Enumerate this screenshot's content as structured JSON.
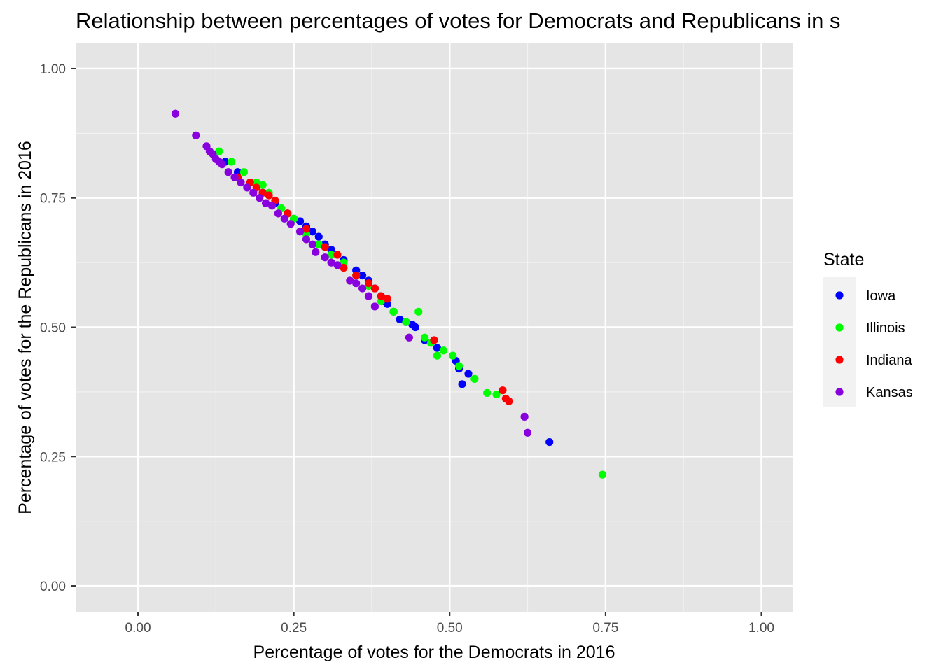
{
  "chart_data": {
    "type": "scatter",
    "title": "Relationship between percentages of votes for Democrats and Republicans in s",
    "xlabel": "Percentage of votes for the Democrats in 2016",
    "ylabel": "Percentage of votes for the Republicans in 2016",
    "xlim": [
      -0.1,
      1.05
    ],
    "ylim": [
      -0.05,
      1.05
    ],
    "xticks": [
      0.0,
      0.25,
      0.5,
      0.75,
      1.0
    ],
    "xtick_labels": [
      "0.00",
      "0.25",
      "0.50",
      "0.75",
      "1.00"
    ],
    "yticks": [
      0.0,
      0.25,
      0.5,
      0.75,
      1.0
    ],
    "ytick_labels": [
      "0.00",
      "0.25",
      "0.50",
      "0.75",
      "1.00"
    ],
    "grid": true,
    "legend": {
      "title": "State",
      "position": "right"
    },
    "series": [
      {
        "name": "Iowa",
        "color": "#0000ff",
        "points": [
          [
            0.14,
            0.82
          ],
          [
            0.16,
            0.8
          ],
          [
            0.18,
            0.78
          ],
          [
            0.2,
            0.76
          ],
          [
            0.22,
            0.74
          ],
          [
            0.24,
            0.72
          ],
          [
            0.25,
            0.71
          ],
          [
            0.26,
            0.705
          ],
          [
            0.27,
            0.695
          ],
          [
            0.28,
            0.685
          ],
          [
            0.29,
            0.675
          ],
          [
            0.3,
            0.66
          ],
          [
            0.31,
            0.65
          ],
          [
            0.33,
            0.63
          ],
          [
            0.35,
            0.61
          ],
          [
            0.36,
            0.6
          ],
          [
            0.37,
            0.59
          ],
          [
            0.38,
            0.575
          ],
          [
            0.39,
            0.56
          ],
          [
            0.395,
            0.55
          ],
          [
            0.4,
            0.545
          ],
          [
            0.41,
            0.53
          ],
          [
            0.42,
            0.515
          ],
          [
            0.43,
            0.51
          ],
          [
            0.44,
            0.505
          ],
          [
            0.445,
            0.5
          ],
          [
            0.46,
            0.475
          ],
          [
            0.47,
            0.47
          ],
          [
            0.48,
            0.46
          ],
          [
            0.51,
            0.435
          ],
          [
            0.515,
            0.42
          ],
          [
            0.52,
            0.39
          ],
          [
            0.53,
            0.41
          ],
          [
            0.66,
            0.278
          ]
        ]
      },
      {
        "name": "Illinois",
        "color": "#00ff00",
        "points": [
          [
            0.13,
            0.84
          ],
          [
            0.15,
            0.82
          ],
          [
            0.17,
            0.8
          ],
          [
            0.19,
            0.78
          ],
          [
            0.2,
            0.775
          ],
          [
            0.21,
            0.76
          ],
          [
            0.23,
            0.73
          ],
          [
            0.25,
            0.71
          ],
          [
            0.27,
            0.68
          ],
          [
            0.29,
            0.66
          ],
          [
            0.31,
            0.64
          ],
          [
            0.33,
            0.625
          ],
          [
            0.35,
            0.6
          ],
          [
            0.37,
            0.58
          ],
          [
            0.39,
            0.55
          ],
          [
            0.41,
            0.53
          ],
          [
            0.43,
            0.51
          ],
          [
            0.45,
            0.53
          ],
          [
            0.46,
            0.48
          ],
          [
            0.47,
            0.47
          ],
          [
            0.48,
            0.445
          ],
          [
            0.49,
            0.455
          ],
          [
            0.505,
            0.445
          ],
          [
            0.515,
            0.425
          ],
          [
            0.54,
            0.4
          ],
          [
            0.56,
            0.373
          ],
          [
            0.575,
            0.37
          ],
          [
            0.745,
            0.215
          ]
        ]
      },
      {
        "name": "Indiana",
        "color": "#ff0000",
        "points": [
          [
            0.16,
            0.79
          ],
          [
            0.18,
            0.78
          ],
          [
            0.19,
            0.77
          ],
          [
            0.2,
            0.76
          ],
          [
            0.21,
            0.755
          ],
          [
            0.22,
            0.745
          ],
          [
            0.24,
            0.72
          ],
          [
            0.27,
            0.69
          ],
          [
            0.3,
            0.655
          ],
          [
            0.32,
            0.64
          ],
          [
            0.33,
            0.615
          ],
          [
            0.35,
            0.6
          ],
          [
            0.37,
            0.585
          ],
          [
            0.38,
            0.575
          ],
          [
            0.39,
            0.56
          ],
          [
            0.4,
            0.555
          ],
          [
            0.475,
            0.475
          ],
          [
            0.585,
            0.378
          ],
          [
            0.59,
            0.362
          ],
          [
            0.595,
            0.357
          ]
        ]
      },
      {
        "name": "Kansas",
        "color": "#8800dd",
        "points": [
          [
            0.06,
            0.913
          ],
          [
            0.093,
            0.871
          ],
          [
            0.11,
            0.85
          ],
          [
            0.115,
            0.84
          ],
          [
            0.12,
            0.835
          ],
          [
            0.125,
            0.825
          ],
          [
            0.13,
            0.82
          ],
          [
            0.135,
            0.815
          ],
          [
            0.145,
            0.8
          ],
          [
            0.155,
            0.79
          ],
          [
            0.165,
            0.78
          ],
          [
            0.175,
            0.77
          ],
          [
            0.185,
            0.76
          ],
          [
            0.195,
            0.75
          ],
          [
            0.205,
            0.74
          ],
          [
            0.215,
            0.735
          ],
          [
            0.225,
            0.72
          ],
          [
            0.235,
            0.71
          ],
          [
            0.245,
            0.7
          ],
          [
            0.26,
            0.685
          ],
          [
            0.27,
            0.67
          ],
          [
            0.28,
            0.66
          ],
          [
            0.285,
            0.645
          ],
          [
            0.3,
            0.635
          ],
          [
            0.31,
            0.625
          ],
          [
            0.32,
            0.62
          ],
          [
            0.34,
            0.59
          ],
          [
            0.35,
            0.585
          ],
          [
            0.36,
            0.575
          ],
          [
            0.37,
            0.56
          ],
          [
            0.38,
            0.54
          ],
          [
            0.435,
            0.48
          ],
          [
            0.62,
            0.327
          ],
          [
            0.625,
            0.296
          ]
        ]
      }
    ]
  }
}
